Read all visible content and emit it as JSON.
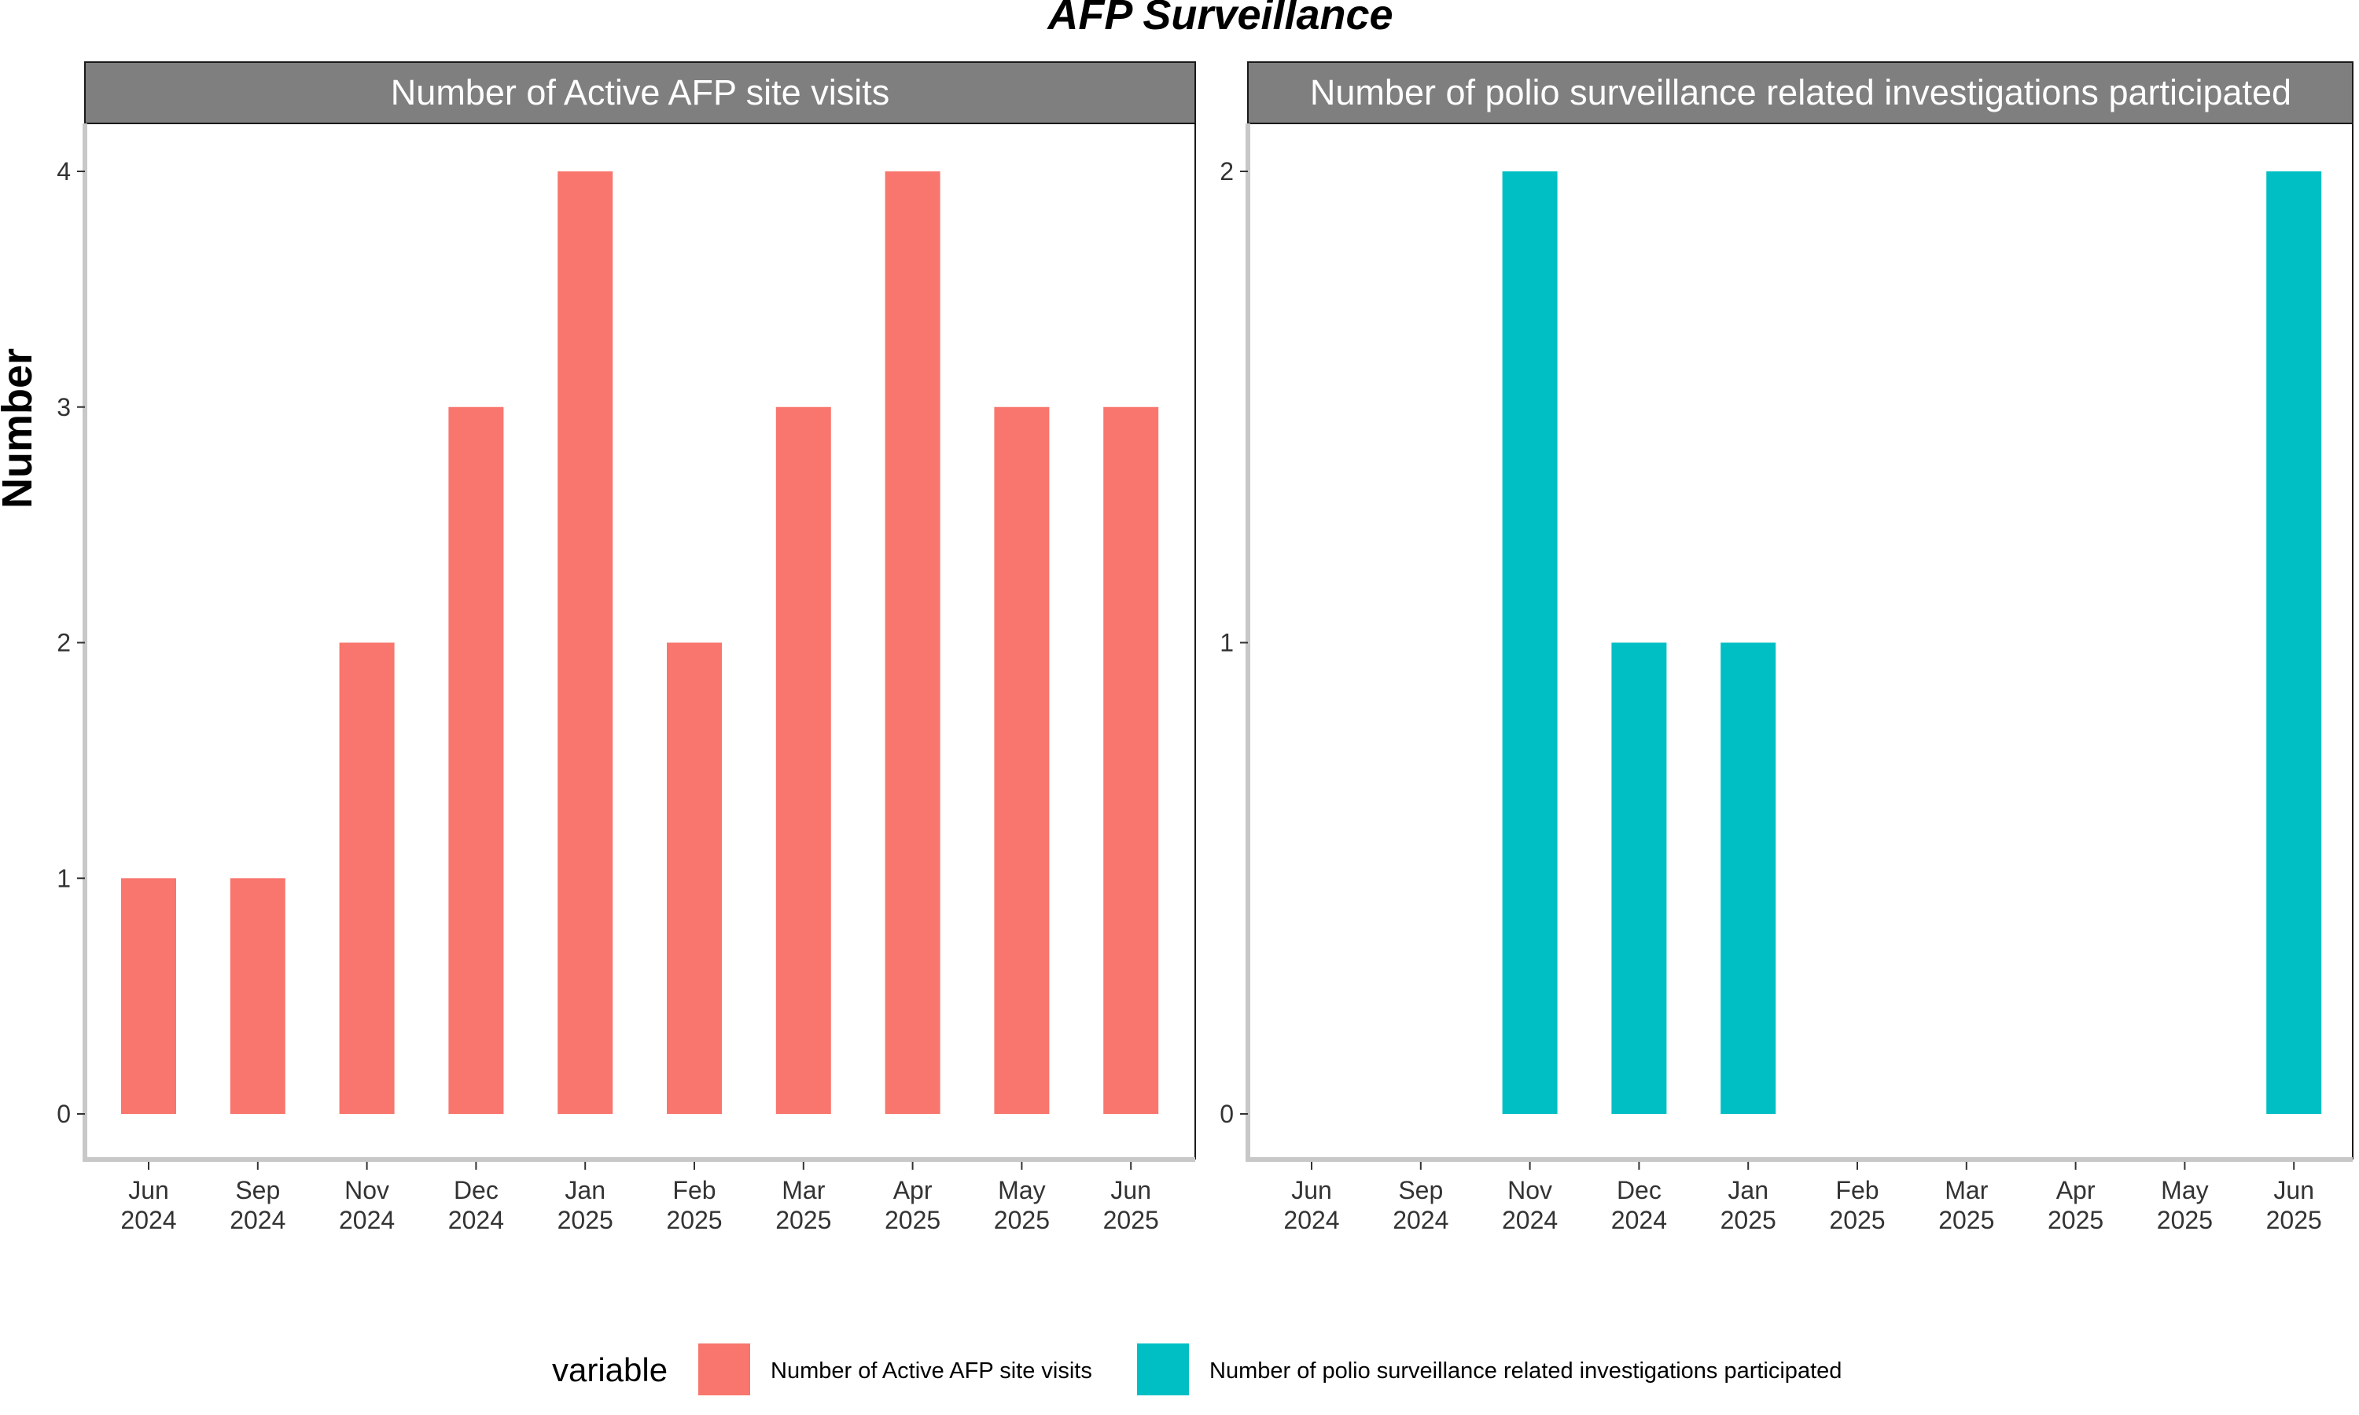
{
  "title": "AFP Surveillance",
  "ylabel": "Number",
  "chart_data": [
    {
      "type": "bar",
      "facet_title": "Number of Active AFP site visits",
      "categories": [
        "Jun\n2024",
        "Sep\n2024",
        "Nov\n2024",
        "Dec\n2024",
        "Jan\n2025",
        "Feb\n2025",
        "Mar\n2025",
        "Apr\n2025",
        "May\n2025",
        "Jun\n2025"
      ],
      "values": [
        1,
        1,
        2,
        3,
        4,
        2,
        3,
        4,
        3,
        3
      ],
      "ylim": [
        0,
        4
      ],
      "yticks": [
        0,
        1,
        2,
        3,
        4
      ],
      "color": "#F8766D"
    },
    {
      "type": "bar",
      "facet_title": "Number of polio surveillance related investigations participated",
      "categories": [
        "Jun\n2024",
        "Sep\n2024",
        "Nov\n2024",
        "Dec\n2024",
        "Jan\n2025",
        "Feb\n2025",
        "Mar\n2025",
        "Apr\n2025",
        "May\n2025",
        "Jun\n2025"
      ],
      "values": [
        0,
        0,
        2,
        1,
        1,
        0,
        0,
        0,
        0,
        2
      ],
      "ylim": [
        0,
        2
      ],
      "yticks": [
        0,
        1,
        2
      ],
      "color": "#00BFC4"
    }
  ],
  "legend": {
    "title": "variable",
    "items": [
      {
        "label": "Number of Active AFP site visits",
        "color": "#F8766D"
      },
      {
        "label": "Number of polio surveillance related investigations participated",
        "color": "#00BFC4"
      }
    ]
  },
  "colors": {
    "strip_bg": "#7F7F7F",
    "axis": "#C8C8C8"
  }
}
